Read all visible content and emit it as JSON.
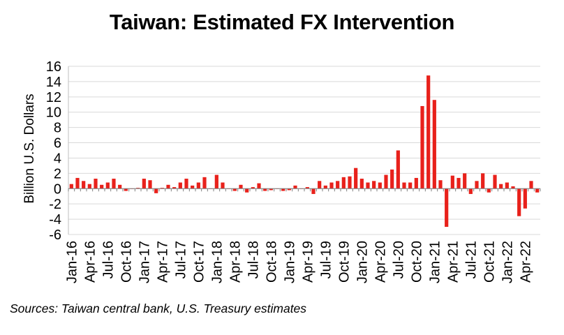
{
  "chart_data": {
    "type": "bar",
    "title": "Taiwan: Estimated FX Intervention",
    "ylabel": "Billion U.S. Dollars",
    "xlabel": "",
    "ylim": [
      -6,
      16
    ],
    "yticks": [
      -6,
      -4,
      -2,
      0,
      2,
      4,
      6,
      8,
      10,
      12,
      14,
      16
    ],
    "grid": true,
    "legend": "none",
    "bar_color": "#e8211b",
    "categories": [
      "Jan-16",
      "Feb-16",
      "Mar-16",
      "Apr-16",
      "May-16",
      "Jun-16",
      "Jul-16",
      "Aug-16",
      "Sep-16",
      "Oct-16",
      "Nov-16",
      "Dec-16",
      "Jan-17",
      "Feb-17",
      "Mar-17",
      "Apr-17",
      "May-17",
      "Jun-17",
      "Jul-17",
      "Aug-17",
      "Sep-17",
      "Oct-17",
      "Nov-17",
      "Dec-17",
      "Jan-18",
      "Feb-18",
      "Mar-18",
      "Apr-18",
      "May-18",
      "Jun-18",
      "Jul-18",
      "Aug-18",
      "Sep-18",
      "Oct-18",
      "Nov-18",
      "Dec-18",
      "Jan-19",
      "Feb-19",
      "Mar-19",
      "Apr-19",
      "May-19",
      "Jun-19",
      "Jul-19",
      "Aug-19",
      "Sep-19",
      "Oct-19",
      "Nov-19",
      "Dec-19",
      "Jan-20",
      "Feb-20",
      "Mar-20",
      "Apr-20",
      "May-20",
      "Jun-20",
      "Jul-20",
      "Aug-20",
      "Sep-20",
      "Oct-20",
      "Nov-20",
      "Dec-20",
      "Jan-21",
      "Feb-21",
      "Mar-21",
      "Apr-21",
      "May-21",
      "Jun-21",
      "Jul-21",
      "Aug-21",
      "Sep-21",
      "Oct-21",
      "Nov-21",
      "Dec-21",
      "Jan-22",
      "Feb-22",
      "Mar-22",
      "Apr-22",
      "May-22",
      "Jun-22"
    ],
    "tick_labels": [
      "Jan-16",
      "Apr-16",
      "Jul-16",
      "Oct-16",
      "Jan-17",
      "Apr-17",
      "Jul-17",
      "Oct-17",
      "Jan-18",
      "Apr-18",
      "Jul-18",
      "Oct-18",
      "Jan-19",
      "Apr-19",
      "Jul-19",
      "Oct-19",
      "Jan-20",
      "Apr-20",
      "Jul-20",
      "Oct-20",
      "Jan-21",
      "Apr-21",
      "Jul-21",
      "Oct-21",
      "Jan-22",
      "Apr-22"
    ],
    "values": [
      0.6,
      1.4,
      1.0,
      0.6,
      1.3,
      0.5,
      0.8,
      1.3,
      0.5,
      -0.3,
      0.0,
      0.1,
      1.3,
      1.1,
      -0.6,
      0.1,
      0.5,
      0.2,
      0.8,
      1.3,
      0.4,
      0.8,
      1.5,
      0.0,
      1.8,
      0.8,
      0.0,
      -0.3,
      0.5,
      -0.5,
      0.2,
      0.7,
      -0.3,
      -0.2,
      0.0,
      -0.3,
      -0.2,
      0.4,
      0.0,
      0.2,
      -0.7,
      1.0,
      0.4,
      0.8,
      1.0,
      1.5,
      1.6,
      2.7,
      1.3,
      0.8,
      1.0,
      0.8,
      1.8,
      2.5,
      5.0,
      0.8,
      0.8,
      1.4,
      10.8,
      14.8,
      11.6,
      1.1,
      -5.0,
      1.7,
      1.4,
      2.0,
      -0.7,
      1.0,
      2.0,
      -0.5,
      1.8,
      0.6,
      0.8,
      0.3,
      -3.6,
      -2.6,
      1.0,
      -0.5
    ]
  },
  "source_note": "Sources: Taiwan central bank, U.S. Treasury estimates"
}
